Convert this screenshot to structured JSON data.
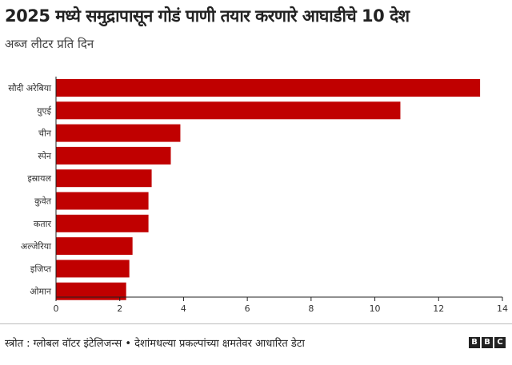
{
  "header": {
    "title": "2025 मध्ये समुद्रापासून गोडं पाणी तयार करणारे आघाडीचे 10 देश",
    "subtitle": "अब्ज लीटर प्रति दिन"
  },
  "footer": {
    "source": "स्त्रोत : ग्लोबल वॉटर इंटेलिजन्स • देशांमधल्या प्रकल्पांच्या क्षमतेवर आधारित डेटा",
    "logo_letters": [
      "B",
      "B",
      "C"
    ]
  },
  "colors": {
    "bar": "#c00000",
    "axis": "#222222",
    "grid": "#dcdcdc"
  },
  "chart_data": {
    "type": "bar",
    "orientation": "horizontal",
    "title": "2025 मध्ये समुद्रापासून गोडं पाणी तयार करणारे आघाडीचे 10 देश",
    "subtitle": "अब्ज लीटर प्रति दिन",
    "categories": [
      "सौदी अरेबिया",
      "युएई",
      "चीन",
      "स्पेन",
      "इस्रायल",
      "कुवेत",
      "कतार",
      "अल्जेरिया",
      "इजिप्त",
      "ओमान"
    ],
    "values": [
      13.3,
      10.8,
      3.9,
      3.6,
      3.0,
      2.9,
      2.9,
      2.4,
      2.3,
      2.2
    ],
    "xlim": [
      0,
      14
    ],
    "xticks": [
      0,
      2,
      4,
      6,
      8,
      10,
      12,
      14
    ],
    "grid": false,
    "legend": "none"
  }
}
